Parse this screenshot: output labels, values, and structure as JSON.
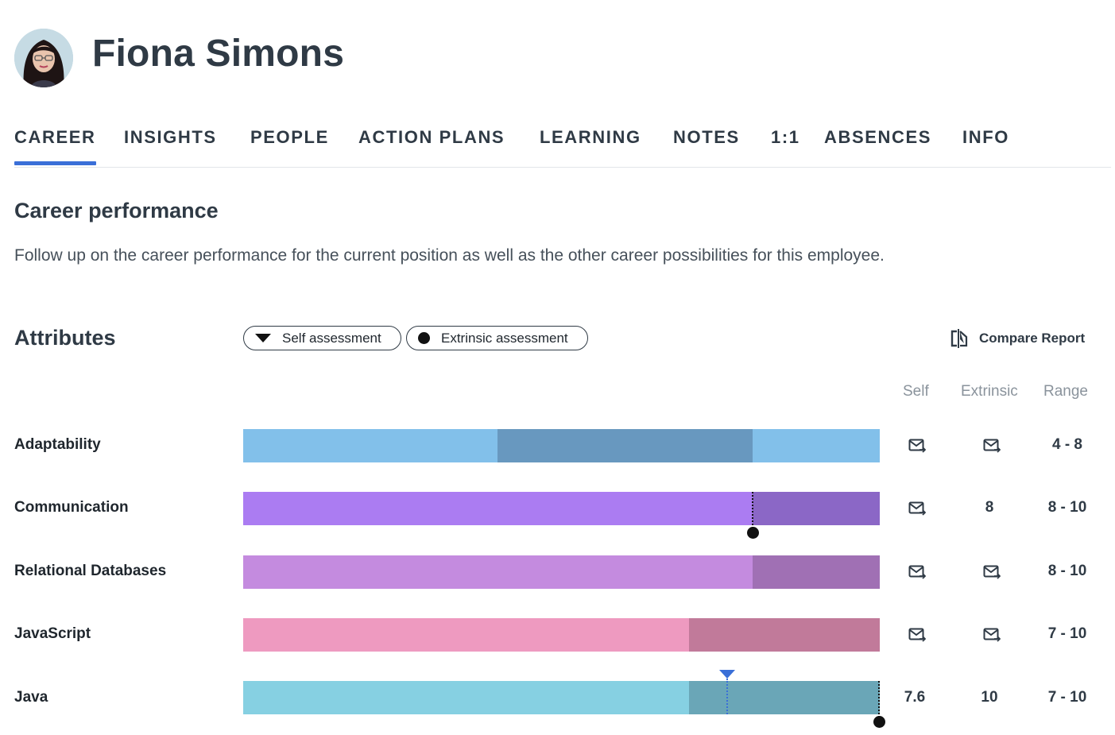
{
  "profile": {
    "name": "Fiona Simons",
    "avatar_icon": "avatar-portrait"
  },
  "tabs": [
    {
      "label": "CAREER",
      "active": true
    },
    {
      "label": "INSIGHTS",
      "active": false
    },
    {
      "label": "PEOPLE",
      "active": false
    },
    {
      "label": "ACTION PLANS",
      "active": false
    },
    {
      "label": "LEARNING",
      "active": false
    },
    {
      "label": "NOTES",
      "active": false
    },
    {
      "label": "1:1",
      "active": false
    },
    {
      "label": "ABSENCES",
      "active": false
    },
    {
      "label": "INFO",
      "active": false
    }
  ],
  "section": {
    "title": "Career performance",
    "description": "Follow up on the career performance for the current position as well as the other career possibilities for this employee."
  },
  "attributes": {
    "title": "Attributes",
    "legend": {
      "self_label": "Self assessment",
      "extrinsic_label": "Extrinsic assessment"
    },
    "compare_label": "Compare Report",
    "columns": {
      "self": "Self",
      "extrinsic": "Extrinsic",
      "range": "Range"
    },
    "scale_max": 10,
    "rows": [
      {
        "label": "Adaptability",
        "range_min": 4,
        "range_max": 8,
        "range_text": "4  -  8",
        "self": null,
        "extrinsic": null,
        "light": "#82c0ea",
        "dark": "#6898bf"
      },
      {
        "label": "Communication",
        "range_min": 8,
        "range_max": 10,
        "range_text": "8  -  10",
        "self": null,
        "extrinsic": 8,
        "extrinsic_text": "8",
        "light": "#ab7cf2",
        "dark": "#8b67c6"
      },
      {
        "label": "Relational Databases",
        "range_min": 8,
        "range_max": 10,
        "range_text": "8  -  10",
        "self": null,
        "extrinsic": null,
        "light": "#c48bdf",
        "dark": "#a070b4"
      },
      {
        "label": "JavaScript",
        "range_min": 7,
        "range_max": 10,
        "range_text": "7  -  10",
        "self": null,
        "extrinsic": null,
        "light": "#ee9ac0",
        "dark": "#c17a9a"
      },
      {
        "label": "Java",
        "range_min": 7,
        "range_max": 10,
        "range_text": "7  -  10",
        "self": 7.6,
        "self_text": "7.6",
        "extrinsic": 10,
        "extrinsic_text": "10",
        "light": "#86d0e2",
        "dark": "#6aa6b7"
      }
    ]
  }
}
